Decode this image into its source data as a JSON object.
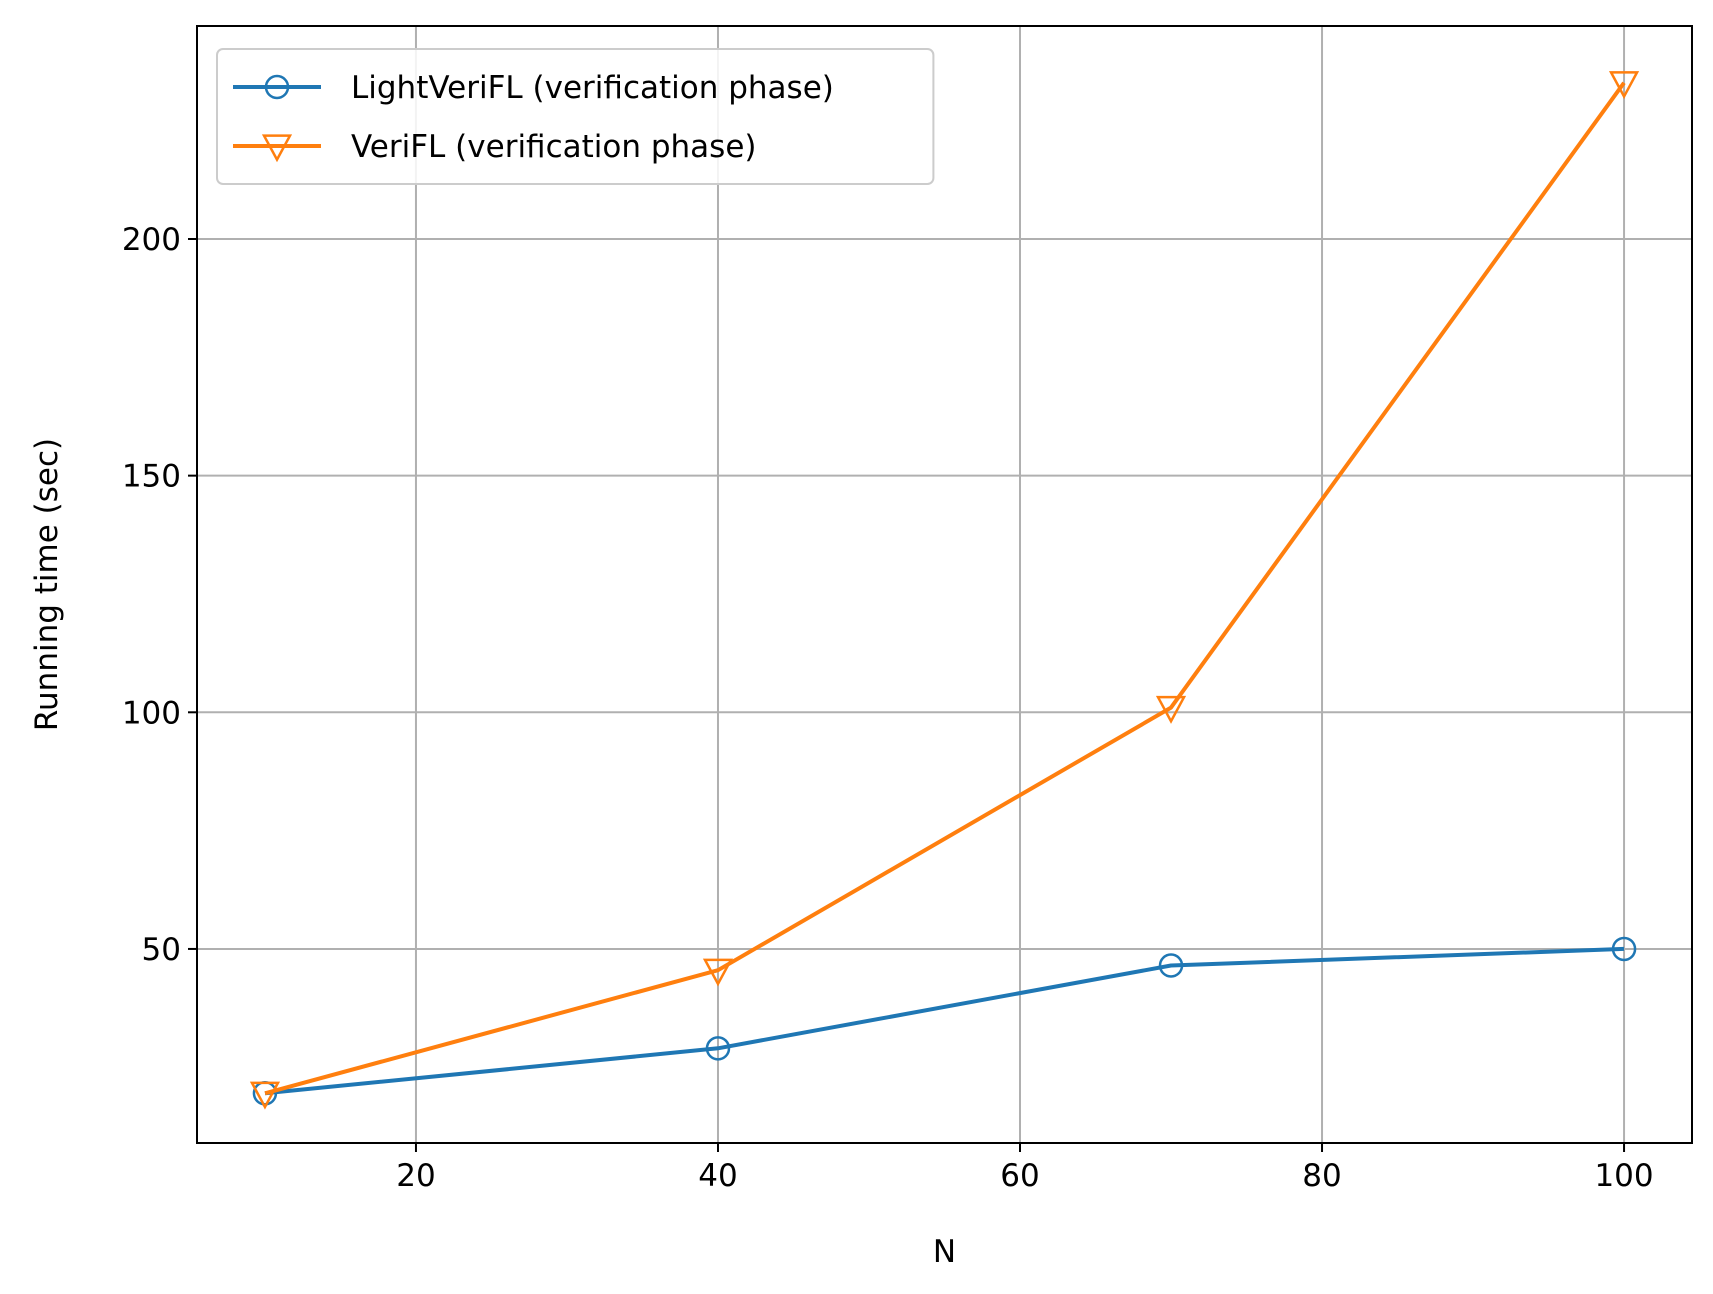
{
  "chart_data": {
    "type": "line",
    "title": "",
    "xlabel": "N",
    "ylabel": "Running time (sec)",
    "xlim": [
      5.5,
      104.5
    ],
    "ylim": [
      9,
      245
    ],
    "xticks": [
      20,
      40,
      60,
      80,
      100
    ],
    "yticks": [
      50,
      100,
      150,
      200
    ],
    "grid": true,
    "legend_position": "upper-left",
    "series": [
      {
        "name": "LightVeriFL (verification phase)",
        "color": "#1f77b4",
        "marker": "circle",
        "x": [
          10,
          40,
          70,
          100
        ],
        "y": [
          19.5,
          29,
          46.5,
          50
        ]
      },
      {
        "name": "VeriFL (verification phase)",
        "color": "#ff7f0e",
        "marker": "triangle-down",
        "x": [
          10,
          40,
          70,
          100
        ],
        "y": [
          19.5,
          45.5,
          101,
          233
        ]
      }
    ]
  }
}
